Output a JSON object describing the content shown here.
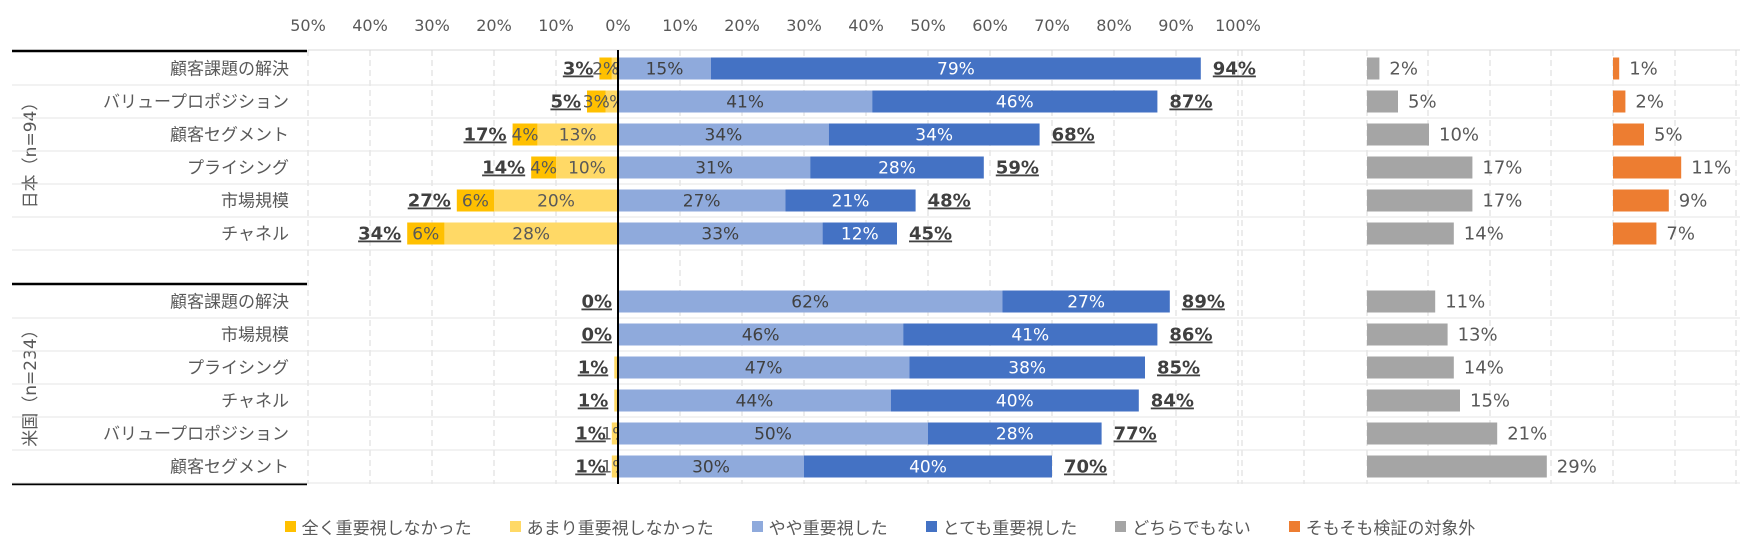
{
  "chart_data": {
    "type": "bar",
    "subtype": "diverging-stacked-horizontal",
    "axis": {
      "tick_labels": [
        "50%",
        "40%",
        "30%",
        "20%",
        "10%",
        "0%",
        "10%",
        "20%",
        "30%",
        "40%",
        "50%",
        "60%",
        "70%",
        "80%",
        "90%",
        "100%"
      ],
      "xlim": [
        -50,
        100
      ],
      "grid": true
    },
    "series": [
      {
        "key": "not_at_all",
        "name": "全く重要視しなかった",
        "color": "#FFC000"
      },
      {
        "key": "not_very",
        "name": "あまり重要視しなかった",
        "color": "#FFD966"
      },
      {
        "key": "somewhat",
        "name": "やや重要視した",
        "color": "#8FAADC"
      },
      {
        "key": "very",
        "name": "とても重要視した",
        "color": "#4472C4"
      },
      {
        "key": "neither",
        "name": "どちらでもない",
        "color": "#A5A5A5"
      },
      {
        "key": "not_applicable",
        "name": "そもそも検証の対象外",
        "color": "#ED7D31"
      }
    ],
    "groups": [
      {
        "name": "日本（n=94）",
        "rows": [
          {
            "category": "顧客課題の解決",
            "not_at_all": 2,
            "not_very": 1,
            "somewhat": 15,
            "very": 79,
            "neither": 2,
            "not_applicable": 1,
            "neg_total": "3%",
            "pos_total": "94%",
            "labels": {
              "not_at_all": "2%",
              "not_very": "1%",
              "somewhat": "15%",
              "very": "79%",
              "neither": "2%",
              "not_applicable": "1%"
            }
          },
          {
            "category": "バリュープロポジション",
            "not_at_all": 3,
            "not_very": 2,
            "somewhat": 41,
            "very": 46,
            "neither": 5,
            "not_applicable": 2,
            "neg_total": "5%",
            "pos_total": "87%",
            "labels": {
              "not_at_all": "3%",
              "not_very": "2%",
              "somewhat": "41%",
              "very": "46%",
              "neither": "5%",
              "not_applicable": "2%"
            }
          },
          {
            "category": "顧客セグメント",
            "not_at_all": 4,
            "not_very": 13,
            "somewhat": 34,
            "very": 34,
            "neither": 10,
            "not_applicable": 5,
            "neg_total": "17%",
            "pos_total": "68%",
            "labels": {
              "not_at_all": "4%",
              "not_very": "13%",
              "somewhat": "34%",
              "very": "34%",
              "neither": "10%",
              "not_applicable": "5%"
            }
          },
          {
            "category": "プライシング",
            "not_at_all": 4,
            "not_very": 10,
            "somewhat": 31,
            "very": 28,
            "neither": 17,
            "not_applicable": 11,
            "neg_total": "14%",
            "pos_total": "59%",
            "labels": {
              "not_at_all": "4%",
              "not_very": "10%",
              "somewhat": "31%",
              "very": "28%",
              "neither": "17%",
              "not_applicable": "11%"
            }
          },
          {
            "category": "市場規模",
            "not_at_all": 6,
            "not_very": 20,
            "somewhat": 27,
            "very": 21,
            "neither": 17,
            "not_applicable": 9,
            "neg_total": "27%",
            "pos_total": "48%",
            "labels": {
              "not_at_all": "6%",
              "not_very": "20%",
              "somewhat": "27%",
              "very": "21%",
              "neither": "17%",
              "not_applicable": "9%"
            }
          },
          {
            "category": "チャネル",
            "not_at_all": 6,
            "not_very": 28,
            "somewhat": 33,
            "very": 12,
            "neither": 14,
            "not_applicable": 7,
            "neg_total": "34%",
            "pos_total": "45%",
            "labels": {
              "not_at_all": "6%",
              "not_very": "28%",
              "somewhat": "33%",
              "very": "12%",
              "neither": "14%",
              "not_applicable": "7%"
            }
          }
        ]
      },
      {
        "name": "米国（n=234）",
        "rows": [
          {
            "category": "顧客課題の解決",
            "not_at_all": 0,
            "not_very": 0,
            "somewhat": 62,
            "very": 27,
            "neither": 11,
            "not_applicable": 0,
            "neg_total": "0%",
            "pos_total": "89%",
            "labels": {
              "somewhat": "62%",
              "very": "27%",
              "neither": "11%"
            }
          },
          {
            "category": "市場規模",
            "not_at_all": 0,
            "not_very": 0,
            "somewhat": 46,
            "very": 41,
            "neither": 13,
            "not_applicable": 0,
            "neg_total": "0%",
            "pos_total": "86%",
            "labels": {
              "somewhat": "46%",
              "very": "41%",
              "neither": "13%"
            }
          },
          {
            "category": "プライシング",
            "not_at_all": 0,
            "not_very": 0.6,
            "somewhat": 47,
            "very": 38,
            "neither": 14,
            "not_applicable": 0,
            "neg_total": "1%",
            "pos_total": "85%",
            "labels": {
              "somewhat": "47%",
              "very": "38%",
              "neither": "14%"
            }
          },
          {
            "category": "チャネル",
            "not_at_all": 0,
            "not_very": 0.6,
            "somewhat": 44,
            "very": 40,
            "neither": 15,
            "not_applicable": 0,
            "neg_total": "1%",
            "pos_total": "84%",
            "labels": {
              "somewhat": "44%",
              "very": "40%",
              "neither": "15%"
            }
          },
          {
            "category": "バリュープロポジション",
            "not_at_all": 0,
            "not_very": 1,
            "somewhat": 50,
            "very": 28,
            "neither": 21,
            "not_applicable": 0,
            "neg_total": "1%",
            "pos_total": "77%",
            "labels": {
              "not_very": "1%",
              "somewhat": "50%",
              "very": "28%",
              "neither": "21%"
            }
          },
          {
            "category": "顧客セグメント",
            "not_at_all": 0,
            "not_very": 1,
            "somewhat": 30,
            "very": 40,
            "neither": 29,
            "not_applicable": 0,
            "neg_total": "1%",
            "pos_total": "70%",
            "labels": {
              "not_very": "1%",
              "somewhat": "30%",
              "very": "40%",
              "neither": "29%"
            }
          }
        ]
      }
    ],
    "legend_position": "bottom"
  }
}
